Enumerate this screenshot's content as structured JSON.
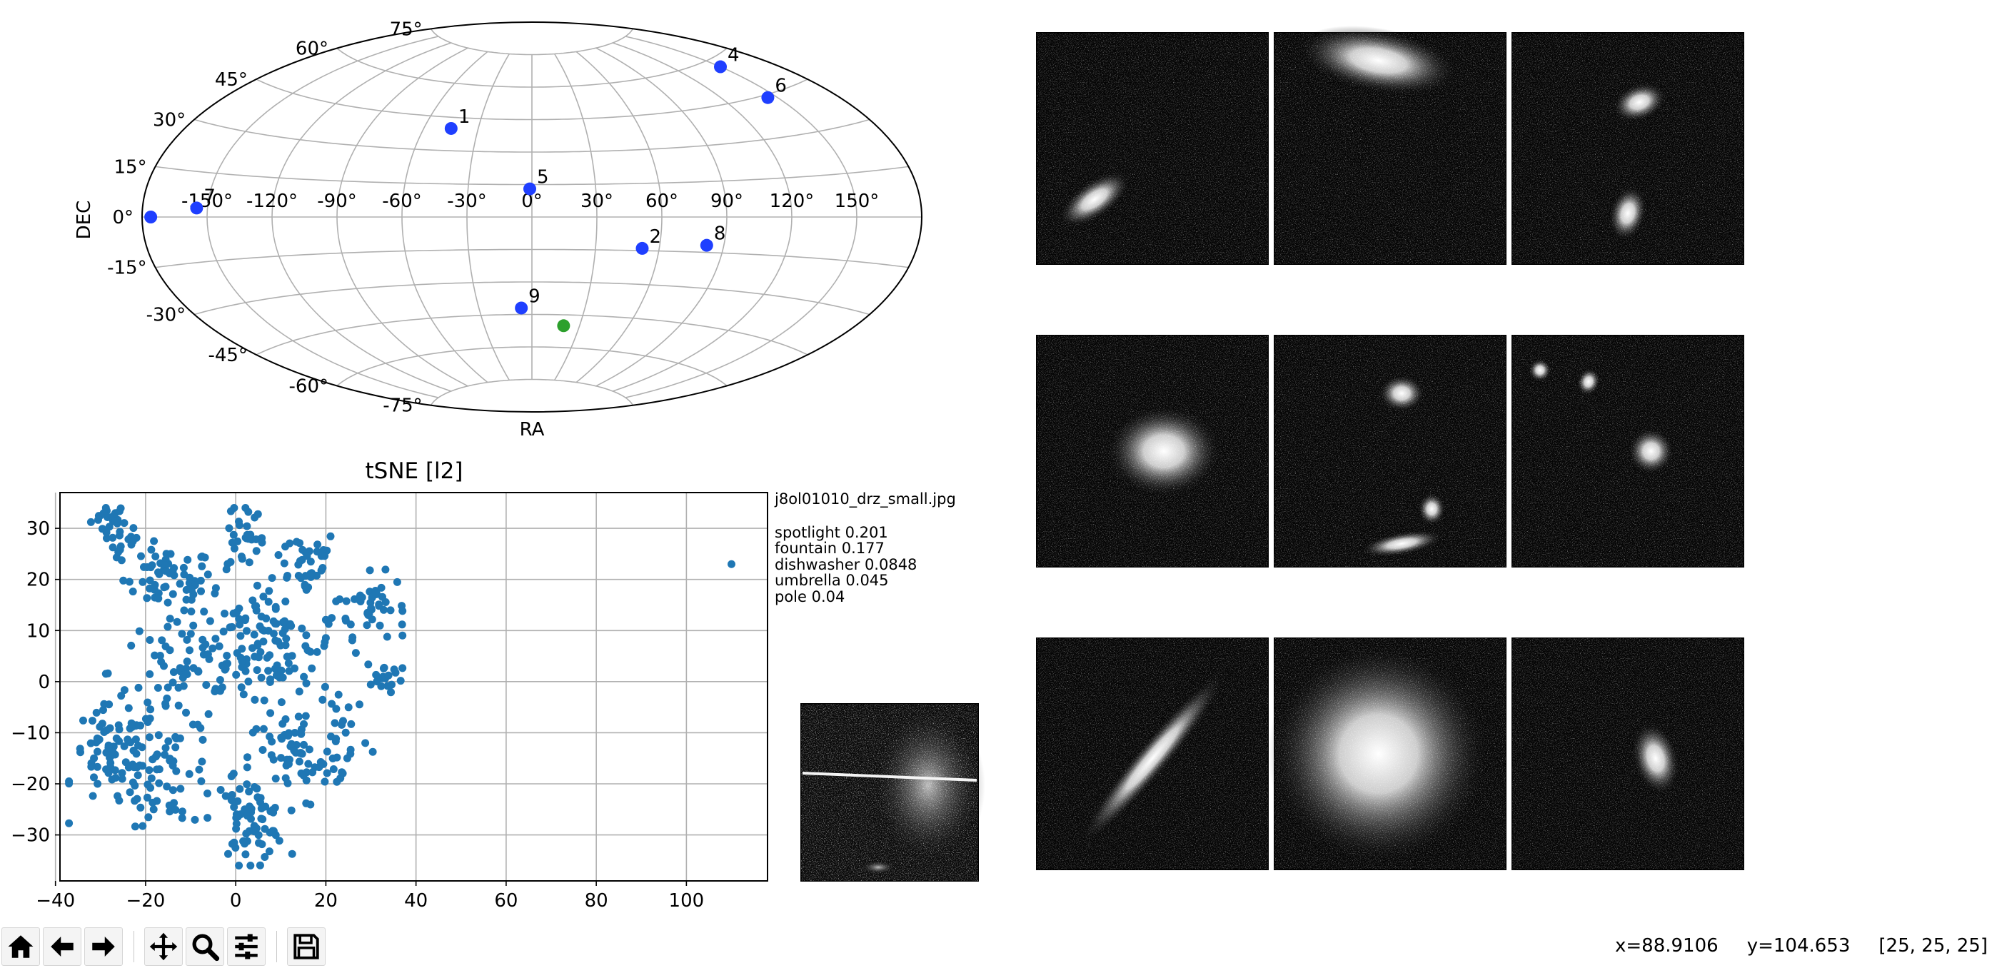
{
  "sky_map": {
    "projection": "aitoff",
    "xlabel": "RA",
    "ylabel": "DEC",
    "ra_ticks": [
      "-150°",
      "-120°",
      "-90°",
      "-60°",
      "-30°",
      "0°",
      "30°",
      "60°",
      "90°",
      "120°",
      "150°"
    ],
    "dec_ticks": [
      "-75°",
      "-60°",
      "-45°",
      "-30°",
      "-15°",
      "0°",
      "15°",
      "30°",
      "45°",
      "60°",
      "75°"
    ],
    "points": [
      {
        "label": "1",
        "ra": -45,
        "dec": 40,
        "color": "#1f3fff"
      },
      {
        "label": "2",
        "ra": 52,
        "dec": -14,
        "color": "#1f3fff"
      },
      {
        "label": "4",
        "ra": 150,
        "dec": 57,
        "color": "#1f3fff"
      },
      {
        "label": "5",
        "ra": -1,
        "dec": 13,
        "color": "#1f3fff"
      },
      {
        "label": "6",
        "ra": 145,
        "dec": 44,
        "color": "#1f3fff"
      },
      {
        "label": "7",
        "ra": -155,
        "dec": 3,
        "color": "#1f3fff"
      },
      {
        "label": "",
        "ra": -176,
        "dec": 0,
        "color": "#1f3fff"
      },
      {
        "label": "8",
        "ra": 82,
        "dec": -12,
        "color": "#1f3fff"
      },
      {
        "label": "9",
        "ra": -6,
        "dec": -42,
        "color": "#1f3fff"
      },
      {
        "label": "",
        "ra": 20,
        "dec": -50,
        "color": "#2ca02c"
      }
    ]
  },
  "chart_data": {
    "type": "scatter",
    "title": "tSNE [l2]",
    "xlabel": "",
    "ylabel": "",
    "xlim": [
      -39,
      118
    ],
    "ylim": [
      -39,
      37
    ],
    "xticks": [
      -40,
      -20,
      0,
      20,
      40,
      60,
      80,
      100
    ],
    "yticks": [
      -30,
      -20,
      -10,
      0,
      10,
      20,
      30
    ],
    "xticklabels": [
      "−40",
      "−20",
      "0",
      "20",
      "40",
      "60",
      "80",
      "100"
    ],
    "yticklabels": [
      "−30",
      "−20",
      "−10",
      "0",
      "10",
      "20",
      "30"
    ],
    "grid": true,
    "color": "#1f77b4",
    "clusters": [
      {
        "cx": -28,
        "cy": 32,
        "sx": 2,
        "sy": 1.5,
        "n": 22
      },
      {
        "cx": -24,
        "cy": 27,
        "sx": 2,
        "sy": 2,
        "n": 14
      },
      {
        "cx": -15,
        "cy": 20,
        "sx": 5,
        "sy": 3,
        "n": 60
      },
      {
        "cx": 2,
        "cy": 29,
        "sx": 2,
        "sy": 4,
        "n": 25
      },
      {
        "cx": 15,
        "cy": 24,
        "sx": 4,
        "sy": 3,
        "n": 35
      },
      {
        "cx": 30,
        "cy": 15,
        "sx": 4,
        "sy": 3,
        "n": 45
      },
      {
        "cx": 33,
        "cy": 1,
        "sx": 2,
        "sy": 2,
        "n": 18
      },
      {
        "cx": 10,
        "cy": 7,
        "sx": 6,
        "sy": 5,
        "n": 85
      },
      {
        "cx": -12,
        "cy": 2,
        "sx": 8,
        "sy": 6,
        "n": 70
      },
      {
        "cx": -27,
        "cy": -15,
        "sx": 5,
        "sy": 5,
        "n": 80
      },
      {
        "cx": -14,
        "cy": -18,
        "sx": 5,
        "sy": 5,
        "n": 55
      },
      {
        "cx": 3,
        "cy": -27,
        "sx": 4,
        "sy": 4,
        "n": 70
      },
      {
        "cx": 13,
        "cy": -15,
        "sx": 5,
        "sy": 5,
        "n": 55
      },
      {
        "cx": 24,
        "cy": -10,
        "sx": 3,
        "sy": 6,
        "n": 25
      },
      {
        "cx": 0,
        "cy": 10,
        "sx": 5,
        "sy": 10,
        "n": 40
      }
    ],
    "outliers": [
      [
        110,
        23
      ]
    ]
  },
  "info": {
    "filename": "j8ol01010_drz_small.jpg",
    "predictions": [
      "spotlight 0.201",
      "fountain 0.177",
      "dishwasher 0.0848",
      "umbrella 0.045",
      "pole 0.04"
    ]
  },
  "thumbnail_count": 9,
  "status": {
    "x": "x=88.9106",
    "y": "y=104.653",
    "value": "[25, 25, 25]"
  },
  "toolbar": {
    "buttons": [
      "home-icon",
      "back-arrow-icon",
      "forward-arrow-icon",
      "pan-move-icon",
      "zoom-magnifier-icon",
      "subplots-sliders-icon",
      "save-floppy-icon"
    ]
  }
}
